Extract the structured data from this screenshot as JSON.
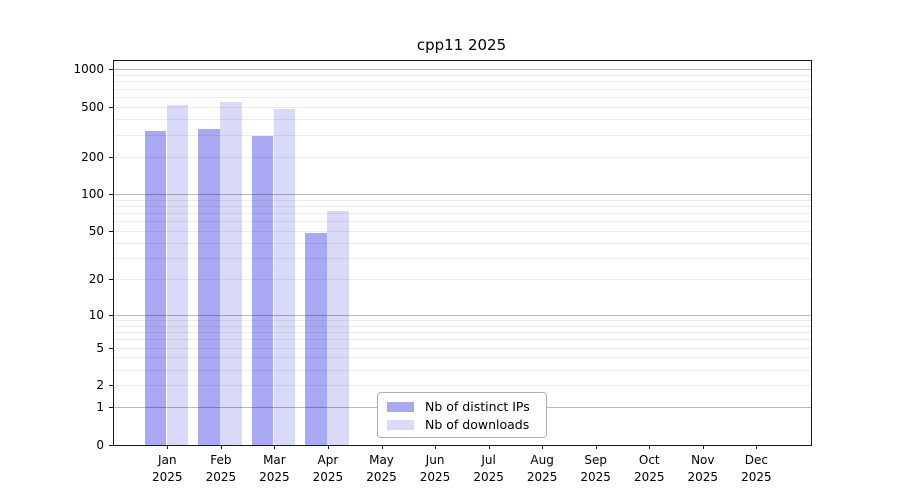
{
  "title": "cpp11 2025",
  "chart_data": {
    "type": "bar",
    "title": "cpp11 2025",
    "y_scale": "log1p",
    "ylim": [
      0,
      1165
    ],
    "y_ticks": [
      1000,
      500,
      200,
      100,
      50,
      20,
      10,
      5,
      2,
      1,
      0
    ],
    "y_major_gridlines": [
      1,
      10,
      100,
      1000
    ],
    "y_minor_gridlines": [
      2,
      3,
      4,
      5,
      6,
      7,
      8,
      9,
      20,
      30,
      40,
      50,
      60,
      70,
      80,
      90,
      200,
      300,
      400,
      500,
      600,
      700,
      800,
      900
    ],
    "x_labels": [
      {
        "month": "Jan",
        "year": "2025"
      },
      {
        "month": "Feb",
        "year": "2025"
      },
      {
        "month": "Mar",
        "year": "2025"
      },
      {
        "month": "Apr",
        "year": "2025"
      },
      {
        "month": "May",
        "year": "2025"
      },
      {
        "month": "Jun",
        "year": "2025"
      },
      {
        "month": "Jul",
        "year": "2025"
      },
      {
        "month": "Aug",
        "year": "2025"
      },
      {
        "month": "Sep",
        "year": "2025"
      },
      {
        "month": "Oct",
        "year": "2025"
      },
      {
        "month": "Nov",
        "year": "2025"
      },
      {
        "month": "Dec",
        "year": "2025"
      }
    ],
    "series": [
      {
        "name": "Nb of distinct IPs",
        "color": "#a8a9f2",
        "values": [
          318,
          330,
          295,
          48,
          null,
          null,
          null,
          null,
          null,
          null,
          null,
          null
        ]
      },
      {
        "name": "Nb of downloads",
        "color": "#d9daf8",
        "values": [
          520,
          550,
          478,
          73,
          null,
          null,
          null,
          null,
          null,
          null,
          null,
          null
        ]
      }
    ],
    "grid": "horizontal-log-minor-major",
    "legend_position": "inside-bottom-center"
  },
  "legend": {
    "items": [
      "Nb of distinct IPs",
      "Nb of downloads"
    ]
  }
}
